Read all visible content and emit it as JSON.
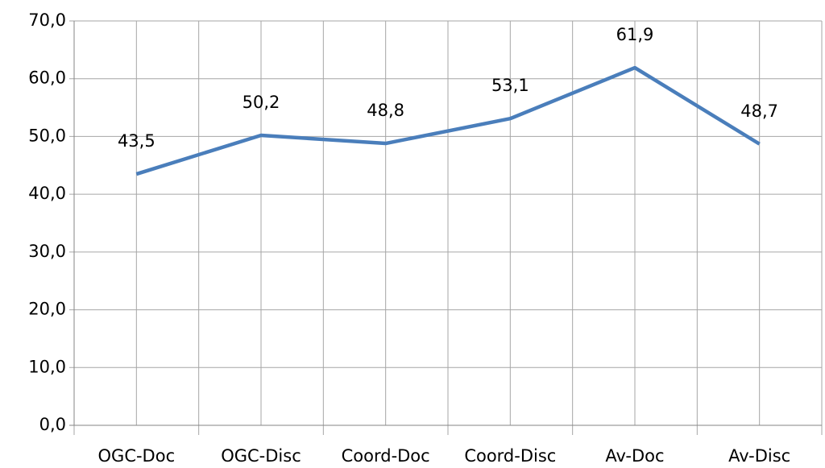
{
  "chart_data": {
    "type": "line",
    "categories": [
      "OGC-Doc",
      "OGC-Disc",
      "Coord-Doc",
      "Coord-Disc",
      "Av-Doc",
      "Av-Disc"
    ],
    "values": [
      43.5,
      50.2,
      48.8,
      53.1,
      61.9,
      48.7
    ],
    "value_labels": [
      "43,5",
      "50,2",
      "48,8",
      "53,1",
      "61,9",
      "48,7"
    ],
    "color": "#4a7ebb",
    "ylim": [
      0,
      70
    ],
    "yticks": [
      {
        "value": 0,
        "label": "0,0"
      },
      {
        "value": 10,
        "label": "10,0"
      },
      {
        "value": 20,
        "label": "20,0"
      },
      {
        "value": 30,
        "label": "30,0"
      },
      {
        "value": 40,
        "label": "40,0"
      },
      {
        "value": 50,
        "label": "50,0"
      },
      {
        "value": 60,
        "label": "60,0"
      },
      {
        "value": 70,
        "label": "70,0"
      }
    ],
    "grid": true
  }
}
